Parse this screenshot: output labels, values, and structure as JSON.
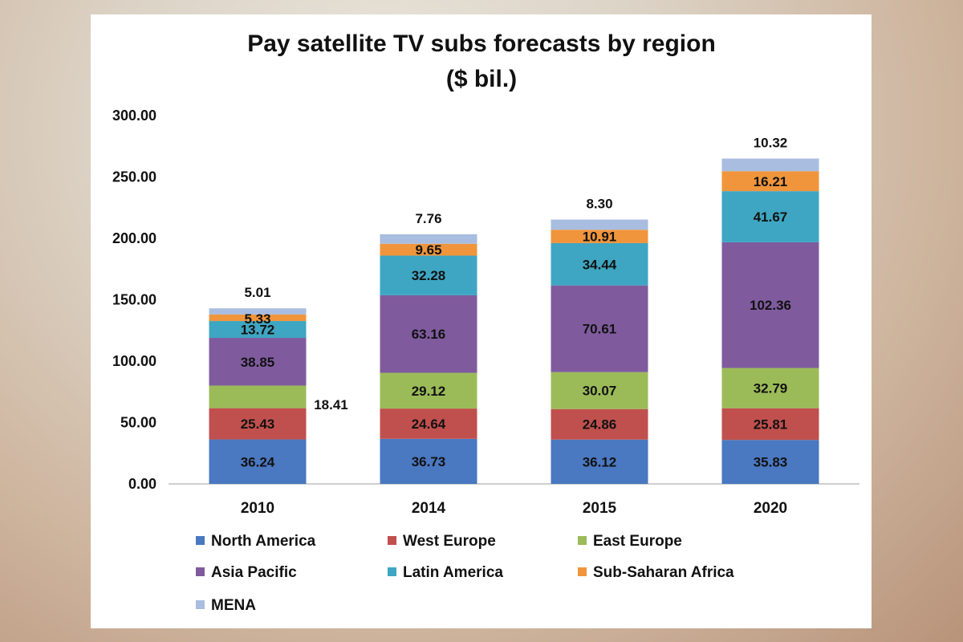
{
  "chart_data": {
    "type": "bar",
    "stacked": true,
    "title": "Pay satellite TV subs forecasts by region",
    "subtitle": "($ bil.)",
    "xlabel": "",
    "ylabel": "",
    "ylim": [
      0,
      300
    ],
    "yticks": [
      "0.00",
      "50.00",
      "100.00",
      "150.00",
      "200.00",
      "250.00",
      "300.00"
    ],
    "grid": false,
    "legend_position": "bottom",
    "categories": [
      "2010",
      "2014",
      "2015",
      "2020"
    ],
    "series": [
      {
        "name": "North America",
        "color": "#4a78c1",
        "values": [
          36.24,
          36.73,
          36.12,
          35.83
        ],
        "labels": [
          "36.24",
          "36.73",
          "36.12",
          "35.83"
        ]
      },
      {
        "name": "West Europe",
        "color": "#c0504d",
        "values": [
          25.43,
          24.64,
          24.86,
          25.81
        ],
        "labels": [
          "25.43",
          "24.64",
          "24.86",
          "25.81"
        ]
      },
      {
        "name": "East Europe",
        "color": "#9bbb59",
        "values": [
          18.41,
          29.12,
          30.07,
          32.79
        ],
        "labels": [
          "18.41",
          "29.12",
          "30.07",
          "32.79"
        ]
      },
      {
        "name": "Asia Pacific",
        "color": "#7f5b9e",
        "values": [
          38.85,
          63.16,
          70.61,
          102.36
        ],
        "labels": [
          "38.85",
          "63.16",
          "70.61",
          "102.36"
        ]
      },
      {
        "name": "Latin America",
        "color": "#3ea6c2",
        "values": [
          13.72,
          32.28,
          34.44,
          41.67
        ],
        "labels": [
          "13.72",
          "32.28",
          "34.44",
          "41.67"
        ]
      },
      {
        "name": "Sub-Saharan Africa",
        "color": "#f0953c",
        "values": [
          5.33,
          9.65,
          10.91,
          16.21
        ],
        "labels": [
          "5.33",
          "9.65",
          "10.91",
          "16.21"
        ]
      },
      {
        "name": "MENA",
        "color": "#a8bde0",
        "values": [
          5.01,
          7.76,
          8.3,
          10.32
        ],
        "labels": [
          "5.01",
          "7.76",
          "8.30",
          "10.32"
        ]
      }
    ]
  }
}
